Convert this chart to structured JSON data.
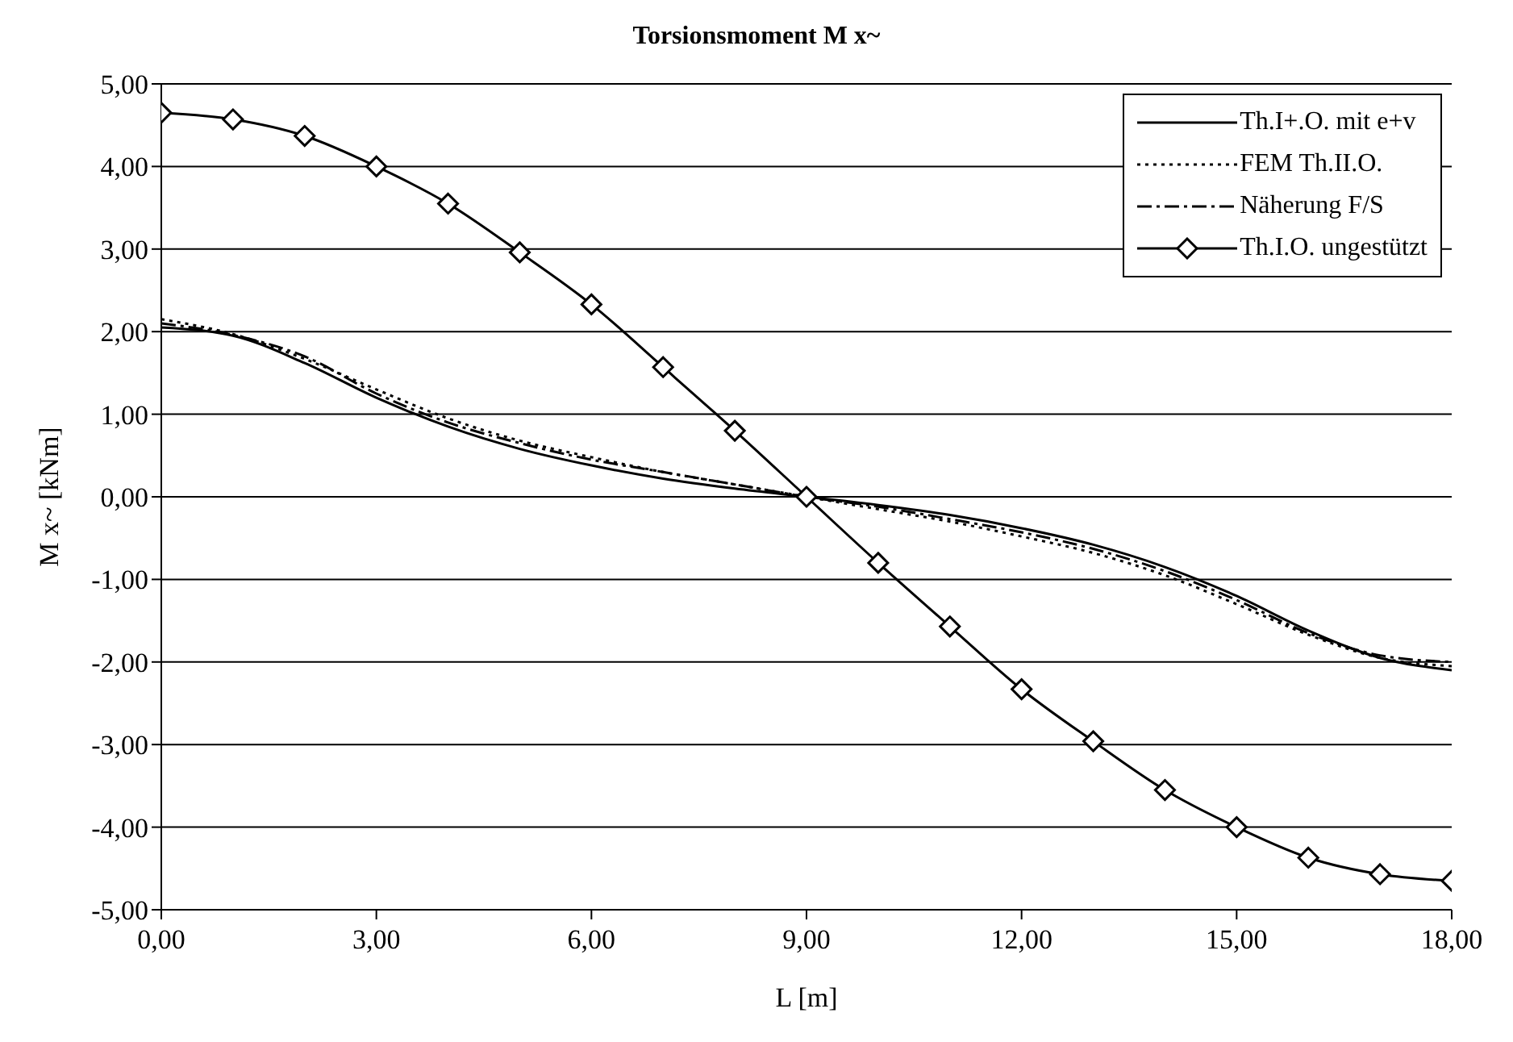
{
  "chart_data": {
    "type": "line",
    "title": "Torsionsmoment M x~",
    "xlabel": "L [m]",
    "ylabel": "M x~ [kNm]",
    "x": [
      0,
      1,
      2,
      3,
      4,
      5,
      6,
      7,
      8,
      9,
      10,
      11,
      12,
      13,
      14,
      15,
      16,
      17,
      18
    ],
    "series": [
      {
        "name": "Th.I+.O. mit e+v",
        "color": "#000000",
        "line_style": "solid",
        "marker": "none",
        "values": [
          2.05,
          1.95,
          1.62,
          1.2,
          0.85,
          0.58,
          0.38,
          0.22,
          0.1,
          0,
          -0.1,
          -0.22,
          -0.38,
          -0.58,
          -0.85,
          -1.2,
          -1.62,
          -1.95,
          -2.1
        ]
      },
      {
        "name": "FEM Th.II.O.",
        "color": "#000000",
        "line_style": "dotted",
        "marker": "none",
        "values": [
          2.15,
          1.97,
          1.67,
          1.3,
          0.95,
          0.68,
          0.48,
          0.3,
          0.15,
          0,
          -0.15,
          -0.3,
          -0.48,
          -0.68,
          -0.95,
          -1.3,
          -1.67,
          -1.95,
          -2.05
        ]
      },
      {
        "name": "Näherung F/S",
        "color": "#000000",
        "line_style": "dashed",
        "marker": "none",
        "values": [
          2.1,
          1.96,
          1.7,
          1.25,
          0.9,
          0.65,
          0.45,
          0.3,
          0.15,
          0,
          -0.12,
          -0.27,
          -0.43,
          -0.63,
          -0.9,
          -1.25,
          -1.65,
          -1.92,
          -2.0
        ]
      },
      {
        "name": "Th.I.O. ungestützt",
        "color": "#000000",
        "line_style": "solid",
        "marker": "diamond",
        "values": [
          4.65,
          4.57,
          4.37,
          4.0,
          3.55,
          2.96,
          2.33,
          1.57,
          0.8,
          0,
          -0.8,
          -1.57,
          -2.33,
          -2.96,
          -3.55,
          -4.0,
          -4.37,
          -4.57,
          -4.65
        ]
      }
    ],
    "xlim": [
      0,
      18
    ],
    "xticks": [
      {
        "value": 0,
        "label": "0,00"
      },
      {
        "value": 3,
        "label": "3,00"
      },
      {
        "value": 6,
        "label": "6,00"
      },
      {
        "value": 9,
        "label": "9,00"
      },
      {
        "value": 12,
        "label": "12,00"
      },
      {
        "value": 15,
        "label": "15,00"
      },
      {
        "value": 18,
        "label": "18,00"
      }
    ],
    "ylim": [
      -5,
      5
    ],
    "yticks": [
      {
        "value": -5,
        "label": "-5,00"
      },
      {
        "value": -4,
        "label": "-4,00"
      },
      {
        "value": -3,
        "label": "-3,00"
      },
      {
        "value": -2,
        "label": "-2,00"
      },
      {
        "value": -1,
        "label": "-1,00"
      },
      {
        "value": 0,
        "label": "0,00"
      },
      {
        "value": 1,
        "label": "1,00"
      },
      {
        "value": 2,
        "label": "2,00"
      },
      {
        "value": 3,
        "label": "3,00"
      },
      {
        "value": 4,
        "label": "4,00"
      },
      {
        "value": 5,
        "label": "5,00"
      }
    ],
    "grid": "y",
    "legend": "top right"
  }
}
